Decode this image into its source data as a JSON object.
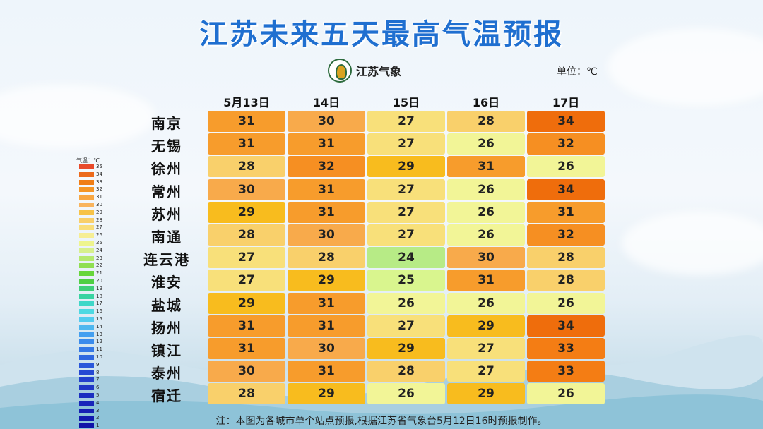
{
  "title": "江苏未来五天最高气温预报",
  "logo_text": "江苏气象",
  "unit": "单位：℃",
  "days": [
    "5月13日",
    "14日",
    "15日",
    "16日",
    "17日"
  ],
  "cities": [
    {
      "name": "南京",
      "temps": [
        31,
        30,
        27,
        28,
        34
      ]
    },
    {
      "name": "无锡",
      "temps": [
        31,
        31,
        27,
        26,
        32
      ]
    },
    {
      "name": "徐州",
      "temps": [
        28,
        32,
        29,
        31,
        26
      ]
    },
    {
      "name": "常州",
      "temps": [
        30,
        31,
        27,
        26,
        34
      ]
    },
    {
      "name": "苏州",
      "temps": [
        29,
        31,
        27,
        26,
        31
      ]
    },
    {
      "name": "南通",
      "temps": [
        28,
        30,
        27,
        26,
        32
      ]
    },
    {
      "name": "连云港",
      "temps": [
        27,
        28,
        24,
        30,
        28
      ]
    },
    {
      "name": "淮安",
      "temps": [
        27,
        29,
        25,
        31,
        28
      ]
    },
    {
      "name": "盐城",
      "temps": [
        29,
        31,
        26,
        26,
        26
      ]
    },
    {
      "name": "扬州",
      "temps": [
        31,
        31,
        27,
        29,
        34
      ]
    },
    {
      "name": "镇江",
      "temps": [
        31,
        30,
        29,
        27,
        33
      ]
    },
    {
      "name": "泰州",
      "temps": [
        30,
        31,
        28,
        27,
        33
      ]
    },
    {
      "name": "宿迁",
      "temps": [
        28,
        29,
        26,
        29,
        26
      ]
    }
  ],
  "legend": {
    "title": "气温：℃",
    "values": [
      35,
      34,
      33,
      32,
      31,
      30,
      29,
      28,
      27,
      26,
      25,
      24,
      23,
      22,
      21,
      20,
      19,
      18,
      17,
      16,
      15,
      14,
      13,
      12,
      11,
      10,
      9,
      8,
      7,
      6,
      5,
      4,
      3,
      2,
      1
    ],
    "colors": [
      "#e84a2a",
      "#ec6a1c",
      "#f07e16",
      "#f59626",
      "#f8a743",
      "#f9b45e",
      "#f7c347",
      "#f9cf69",
      "#f9de7a",
      "#f6ee94",
      "#eef58e",
      "#d7f08c",
      "#b5e96f",
      "#8fdf52",
      "#66d63b",
      "#4fcf43",
      "#3fcf7a",
      "#39d3a1",
      "#3fd7c8",
      "#4dd9e2",
      "#53ccef",
      "#4fb7ef",
      "#449ff0",
      "#3a8bec",
      "#3378e6",
      "#2d67e0",
      "#2a57da",
      "#2649d3",
      "#2240cd",
      "#1e37c6",
      "#1b2ec0",
      "#1826ba",
      "#151fb4",
      "#1219ae",
      "#0f13a8"
    ]
  },
  "temp_colors": {
    "24": "#b7eb86",
    "25": "#d9f58e",
    "26": "#f2f597",
    "27": "#f8e07a",
    "28": "#f9d06b",
    "29": "#f8bc1e",
    "30": "#f8aa4b",
    "31": "#f79c2c",
    "32": "#f68f22",
    "33": "#f47d14",
    "34": "#ef6d0c"
  },
  "note": "注：本图为各城市单个站点预报,根据江苏省气象台5月12日16时预报制作。"
}
